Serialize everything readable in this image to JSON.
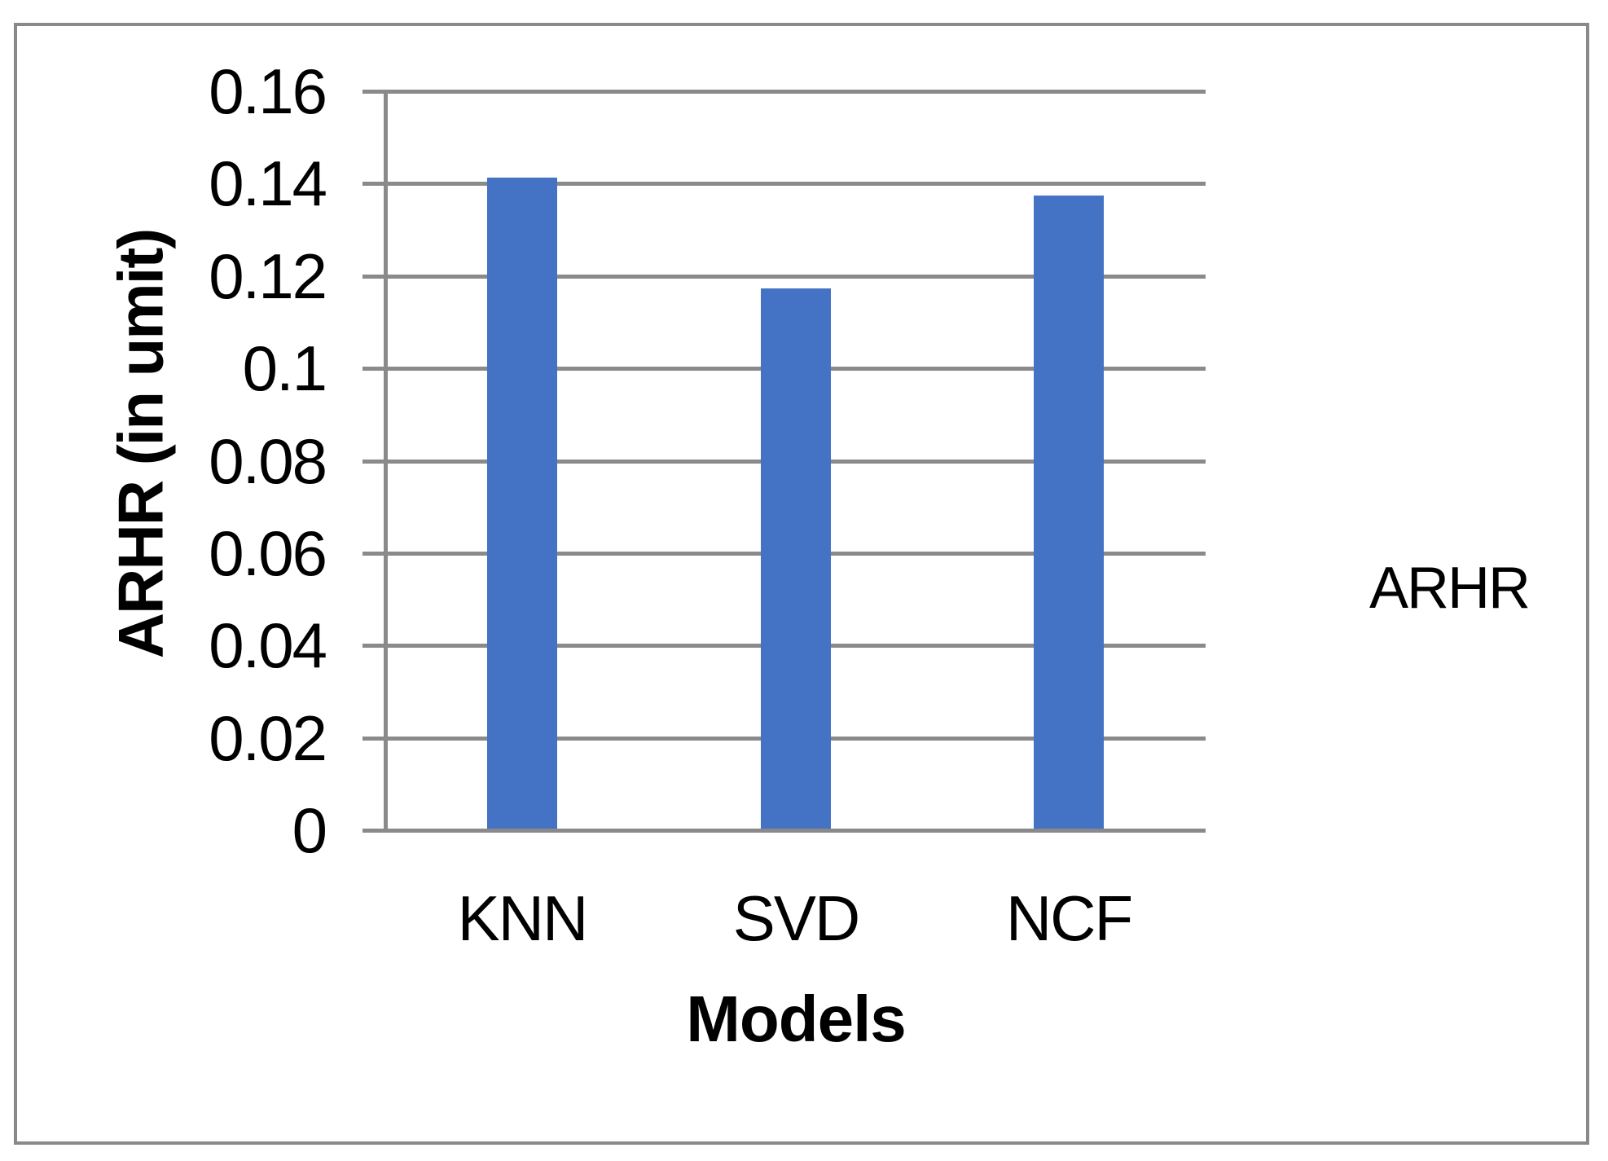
{
  "chart_data": {
    "type": "bar",
    "title": "",
    "categories": [
      "KNN",
      "SVD",
      "NCF"
    ],
    "series": [
      {
        "name": "ARHR",
        "values": [
          0.141,
          0.117,
          0.137
        ]
      }
    ],
    "xlabel": "Models",
    "ylabel": "ARHR (in umit)",
    "ylim": [
      0,
      0.16
    ],
    "ytick_step": 0.02,
    "ytick_labels": [
      "0",
      "0.02",
      "0.04",
      "0.06",
      "0.08",
      "0.1",
      "0.12",
      "0.14",
      "0.16"
    ],
    "grid": true,
    "legend_position": "right-middle",
    "colors": {
      "bar": "#4472C4",
      "grid": "#8A8A8A",
      "axis": "#8A8A8A",
      "frame_border": "#898989",
      "text": "#000000"
    }
  }
}
